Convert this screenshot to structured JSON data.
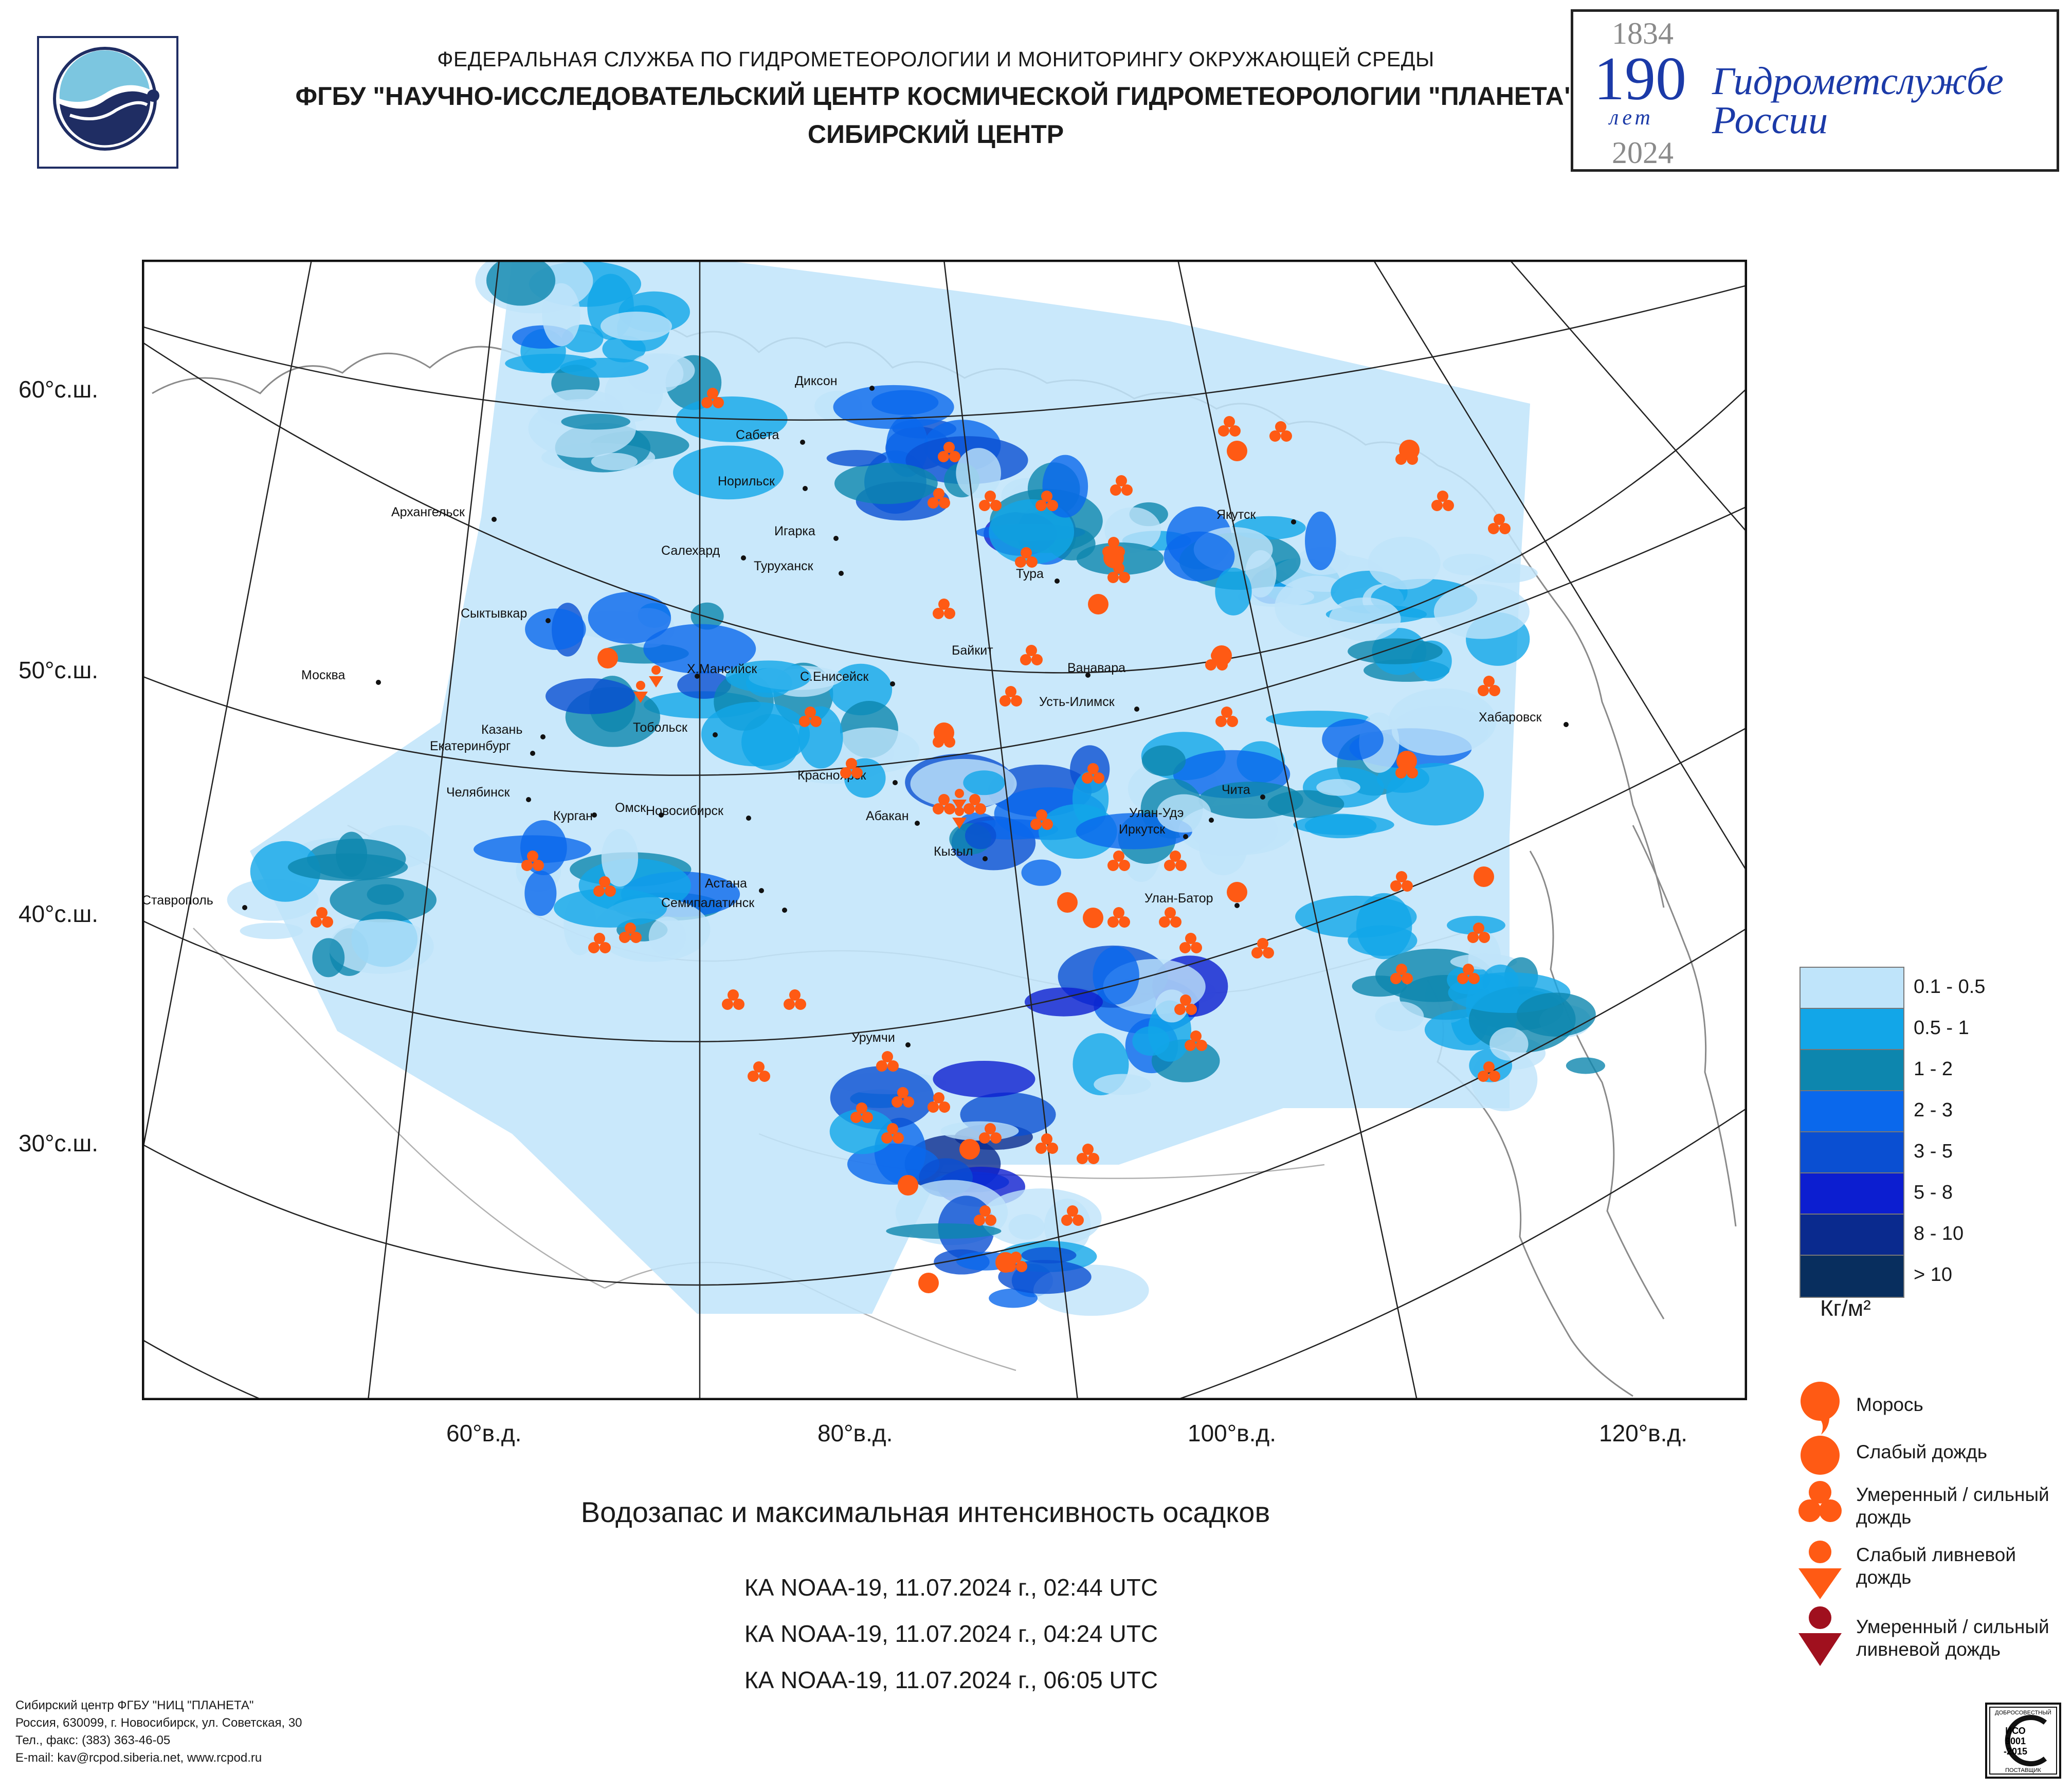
{
  "header": {
    "line1": "ФЕДЕРАЛЬНАЯ СЛУЖБА ПО ГИДРОМЕТЕОРОЛОГИИ И МОНИТОРИНГУ ОКРУЖАЮЩЕЙ СРЕДЫ",
    "line2": "ФГБУ \"НАУЧНО-ИССЛЕДОВАТЕЛЬСКИЙ ЦЕНТР КОСМИЧЕСКОЙ ГИДРОМЕТЕОРОЛОГИИ \"ПЛАНЕТА\"",
    "line3": "СИБИРСКИЙ ЦЕНТР"
  },
  "anniversary": {
    "year_start": "1834",
    "number": "190",
    "years_word": "лет",
    "year_end": "2024",
    "line1": "Гидрометслужбе",
    "line2": "России"
  },
  "map": {
    "lat_labels": [
      "60°с.ш.",
      "50°с.ш.",
      "40°с.ш.",
      "30°с.ш."
    ],
    "lon_labels": [
      "60°в.д.",
      "80°в.д.",
      "100°в.д.",
      "120°в.д."
    ],
    "cities": [
      "Диксон",
      "Сабета",
      "Норильск",
      "Игарка",
      "Туруханск",
      "Тура",
      "Архангельск",
      "Салехард",
      "Якутск",
      "Сыктывкар",
      "Байкит",
      "Ванавара",
      "Москва",
      "Х.Мансийск",
      "С.Енисейск",
      "Усть-Илимск",
      "Хабаровск",
      "Казань",
      "Екатеринбург",
      "Тобольск",
      "Красноярск",
      "Чита",
      "Челябинск",
      "Курган",
      "Омск",
      "Новосибирск",
      "Абакан",
      "Улан-Удэ",
      "Иркутск",
      "Кызыл",
      "Астана",
      "Семипалатинск",
      "Улан-Батор",
      "Ставрополь",
      "Урумчи"
    ]
  },
  "legend": {
    "bins": [
      "0.1 - 0.5",
      "0.5 - 1",
      "1 - 2",
      "2 - 3",
      "3 - 5",
      "5 - 8",
      "8 - 10",
      "> 10"
    ],
    "colors": [
      "#bfe4fa",
      "#12a6e8",
      "#0d86ae",
      "#0a68ec",
      "#0a4fd2",
      "#0c1ed0",
      "#0a2a8e",
      "#082e5e"
    ],
    "unit": "Кг/м²",
    "symbols": [
      "Морось",
      "Слабый дождь",
      "Умеренный / сильный дождь",
      "Слабый ливневой дождь",
      "Умеренный / сильный ливневой дождь"
    ],
    "symbol_lines": [
      [
        "Морось"
      ],
      [
        "Слабый дождь"
      ],
      [
        "Умеренный / сильный",
        "дождь"
      ],
      [
        "Слабый ливневой",
        "дождь"
      ],
      [
        "Умеренный / сильный",
        "ливневой дождь"
      ]
    ]
  },
  "title": "Водозапас и максимальная интенсивность осадков",
  "passes": [
    "КА NOAA-19, 11.07.2024 г., 02:44 UTC",
    "КА NOAA-19, 11.07.2024 г., 04:24 UTC",
    "КА NOAA-19, 11.07.2024 г., 06:05 UTC"
  ],
  "footer": [
    "Сибирский центр ФГБУ \"НИЦ \"ПЛАНЕТА\"",
    "Россия, 630099, г. Новосибирск, ул. Советская, 30",
    "Тел., факс: (383) 363-46-05",
    "E-mail: kav@rcpod.siberia.net, www.rcpod.ru"
  ],
  "certificate": {
    "top": "ДОБРОСОВЕСТНЫЙ",
    "iso1": "ИСО",
    "iso2": "9001",
    "iso3": "-2015",
    "bottom": "ПОСТАВЩИК"
  }
}
